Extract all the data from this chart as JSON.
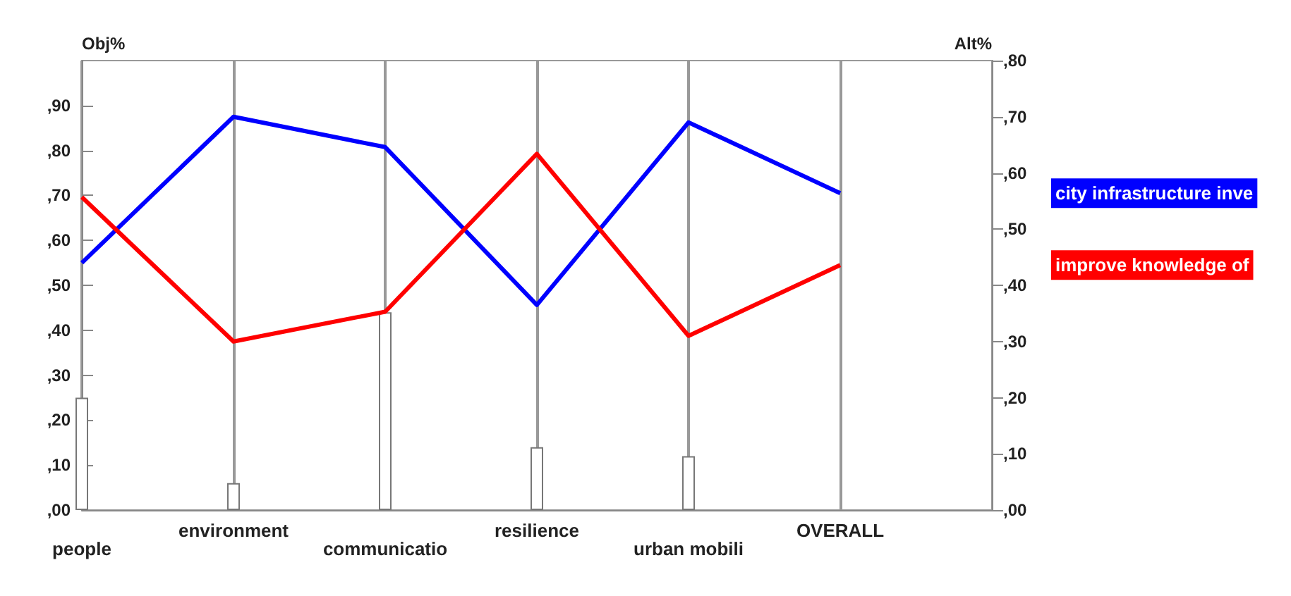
{
  "chart_data": {
    "type": "line",
    "ylabel": "Obj%",
    "y2label": "Alt%",
    "categories": [
      "people",
      "environment",
      "communicatio",
      "resilience",
      "urban mobili",
      "OVERALL"
    ],
    "ylim": [
      0,
      100
    ],
    "yticks": [
      {
        "value": 0,
        "label": ",00"
      },
      {
        "value": 10,
        "label": ",10"
      },
      {
        "value": 20,
        "label": ",20"
      },
      {
        "value": 30,
        "label": ",30"
      },
      {
        "value": 40,
        "label": ",40"
      },
      {
        "value": 50,
        "label": ",50"
      },
      {
        "value": 60,
        "label": ",60"
      },
      {
        "value": 70,
        "label": ",70"
      },
      {
        "value": 80,
        "label": ",80"
      },
      {
        "value": 90,
        "label": ",90"
      }
    ],
    "y2lim": [
      0,
      80
    ],
    "y2ticks": [
      {
        "value": 0,
        "label": ",00"
      },
      {
        "value": 10,
        "label": ",10"
      },
      {
        "value": 20,
        "label": ",20"
      },
      {
        "value": 30,
        "label": ",30"
      },
      {
        "value": 40,
        "label": ",40"
      },
      {
        "value": 50,
        "label": ",50"
      },
      {
        "value": 60,
        "label": ",60"
      },
      {
        "value": 70,
        "label": ",70"
      },
      {
        "value": 80,
        "label": ",80"
      }
    ],
    "series": [
      {
        "type": "bar",
        "color": "#ffffff",
        "values": [
          25,
          6,
          44,
          14,
          12,
          null
        ]
      },
      {
        "axis": "y2",
        "name": "city infrastructure inve",
        "color": "#0000ff",
        "values": [
          44,
          70,
          64.6,
          36.5,
          69,
          56.4
        ]
      },
      {
        "axis": "y2",
        "name": "improve knowledge of",
        "color": "#ff0000",
        "values": [
          55.7,
          30,
          35.3,
          63.4,
          31,
          43.6
        ]
      }
    ],
    "grid": "x",
    "legend": "right",
    "marker": "none",
    "line_style": "solid"
  }
}
